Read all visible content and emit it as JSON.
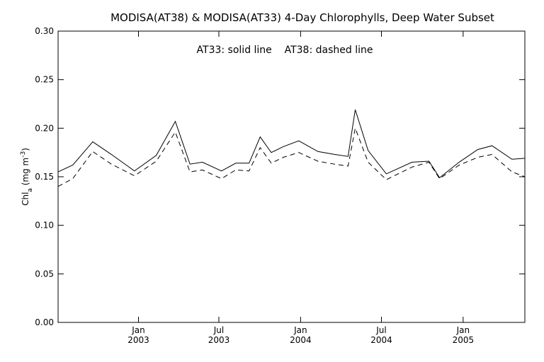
{
  "chart_data": {
    "type": "line",
    "title": "MODISA(AT38) & MODISA(AT33) 4-Day Chlorophylls, Deep Water Subset",
    "annotation": "AT33: solid line    AT38: dashed line",
    "ylabel": {
      "base": "Chl",
      "subscript": "a",
      "units_pre": " (mg m",
      "units_sup": "-3",
      "units_post": ")"
    },
    "xlabel": "",
    "ylim": [
      0.0,
      0.3
    ],
    "yticks": [
      "0.00",
      "0.05",
      "0.10",
      "0.15",
      "0.20",
      "0.25",
      "0.30"
    ],
    "yticks_values": [
      0.0,
      0.05,
      0.1,
      0.15,
      0.2,
      0.25,
      0.3
    ],
    "xlim": [
      "2002-07-04",
      "2005-05-20"
    ],
    "xticks": [
      {
        "date": "2003-01-01",
        "month": "Jan",
        "year": "2003"
      },
      {
        "date": "2003-07-01",
        "month": "Jul",
        "year": "2003"
      },
      {
        "date": "2004-01-01",
        "month": "Jan",
        "year": "2004"
      },
      {
        "date": "2004-07-01",
        "month": "Jul",
        "year": "2004"
      },
      {
        "date": "2005-01-01",
        "month": "Jan",
        "year": "2005"
      }
    ],
    "grid": false,
    "series": [
      {
        "name": "AT33",
        "style": "solid",
        "color": "#000000",
        "x": [
          "2002-07-04",
          "2002-08-06",
          "2002-09-20",
          "2002-11-01",
          "2002-12-23",
          "2003-02-10",
          "2003-03-25",
          "2003-04-27",
          "2003-05-25",
          "2003-07-07",
          "2003-08-08",
          "2003-09-07",
          "2003-10-02",
          "2003-10-27",
          "2003-11-23",
          "2003-12-28",
          "2004-02-09",
          "2004-03-17",
          "2004-04-17",
          "2004-05-03",
          "2004-06-01",
          "2004-07-12",
          "2004-09-08",
          "2004-10-16",
          "2004-11-09",
          "2004-12-23",
          "2005-02-03",
          "2005-03-07",
          "2005-04-21",
          "2005-05-20"
        ],
        "y": [
          0.155,
          0.162,
          0.186,
          0.173,
          0.156,
          0.172,
          0.207,
          0.163,
          0.165,
          0.156,
          0.164,
          0.164,
          0.191,
          0.175,
          0.181,
          0.187,
          0.176,
          0.173,
          0.171,
          0.219,
          0.177,
          0.153,
          0.165,
          0.166,
          0.149,
          0.165,
          0.178,
          0.182,
          0.168,
          0.169
        ]
      },
      {
        "name": "AT38",
        "style": "dashed",
        "color": "#000000",
        "x": [
          "2002-07-04",
          "2002-08-06",
          "2002-09-20",
          "2002-11-01",
          "2002-12-23",
          "2003-02-10",
          "2003-03-25",
          "2003-04-27",
          "2003-05-25",
          "2003-07-07",
          "2003-08-08",
          "2003-09-07",
          "2003-10-02",
          "2003-10-27",
          "2003-11-23",
          "2003-12-28",
          "2004-02-09",
          "2004-03-17",
          "2004-04-17",
          "2004-05-03",
          "2004-06-01",
          "2004-07-12",
          "2004-09-08",
          "2004-10-16",
          "2004-11-09",
          "2004-12-23",
          "2005-02-03",
          "2005-03-07",
          "2005-04-21",
          "2005-05-20"
        ],
        "y": [
          0.14,
          0.148,
          0.176,
          0.163,
          0.151,
          0.166,
          0.196,
          0.155,
          0.157,
          0.148,
          0.157,
          0.156,
          0.18,
          0.164,
          0.17,
          0.175,
          0.166,
          0.163,
          0.161,
          0.2,
          0.165,
          0.147,
          0.16,
          0.165,
          0.148,
          0.162,
          0.17,
          0.173,
          0.155,
          0.15
        ]
      }
    ]
  }
}
